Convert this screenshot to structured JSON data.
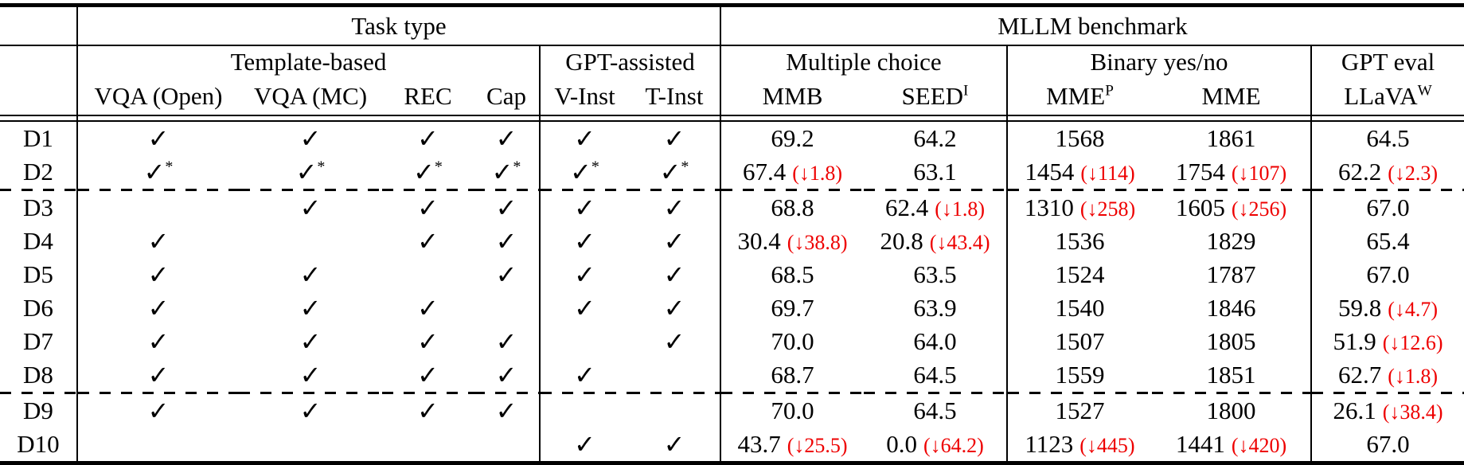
{
  "title_row": {
    "task_type": "Task type",
    "mllm_benchmark": "MLLM benchmark"
  },
  "group_row": {
    "template_based": "Template-based",
    "gpt_assisted": "GPT-assisted",
    "multiple_choice": "Multiple choice",
    "binary_yes_no": "Binary yes/no",
    "gpt_eval": "GPT eval"
  },
  "columns": [
    {
      "label": "VQA (Open)",
      "sup": ""
    },
    {
      "label": "VQA (MC)",
      "sup": ""
    },
    {
      "label": "REC",
      "sup": ""
    },
    {
      "label": "Cap",
      "sup": ""
    },
    {
      "label": "V-Inst",
      "sup": ""
    },
    {
      "label": "T-Inst",
      "sup": ""
    },
    {
      "label": "MMB",
      "sup": ""
    },
    {
      "label": "SEED",
      "sup": "I"
    },
    {
      "label": "MME",
      "sup": "P"
    },
    {
      "label": "MME",
      "sup": ""
    },
    {
      "label": "LLaVA",
      "sup": "W"
    }
  ],
  "symbols": {
    "check": "✓",
    "star": "*",
    "down_arrow": "↓"
  },
  "colors": {
    "delta_red": "#ee0000",
    "text": "#000000"
  },
  "rows": [
    {
      "id": "D1",
      "tasks": [
        "check",
        "check",
        "check",
        "check",
        "check",
        "check"
      ],
      "metrics": [
        {
          "v": "69.2"
        },
        {
          "v": "64.2"
        },
        {
          "v": "1568"
        },
        {
          "v": "1861"
        },
        {
          "v": "64.5"
        }
      ]
    },
    {
      "id": "D2",
      "tasks": [
        "check-star",
        "check-star",
        "check-star",
        "check-star",
        "check-star",
        "check-star"
      ],
      "metrics": [
        {
          "v": "67.4",
          "d": "1.8"
        },
        {
          "v": "63.1"
        },
        {
          "v": "1454",
          "d": "114"
        },
        {
          "v": "1754",
          "d": "107"
        },
        {
          "v": "62.2",
          "d": "2.3"
        }
      ]
    },
    {
      "id": "D3",
      "tasks": [
        "",
        "check",
        "check",
        "check",
        "check",
        "check"
      ],
      "metrics": [
        {
          "v": "68.8"
        },
        {
          "v": "62.4",
          "d": "1.8"
        },
        {
          "v": "1310",
          "d": "258"
        },
        {
          "v": "1605",
          "d": "256"
        },
        {
          "v": "67.0"
        }
      ]
    },
    {
      "id": "D4",
      "tasks": [
        "check",
        "",
        "check",
        "check",
        "check",
        "check"
      ],
      "metrics": [
        {
          "v": "30.4",
          "d": "38.8"
        },
        {
          "v": "20.8",
          "d": "43.4"
        },
        {
          "v": "1536"
        },
        {
          "v": "1829"
        },
        {
          "v": "65.4"
        }
      ]
    },
    {
      "id": "D5",
      "tasks": [
        "check",
        "check",
        "",
        "check",
        "check",
        "check"
      ],
      "metrics": [
        {
          "v": "68.5"
        },
        {
          "v": "63.5"
        },
        {
          "v": "1524"
        },
        {
          "v": "1787"
        },
        {
          "v": "67.0"
        }
      ]
    },
    {
      "id": "D6",
      "tasks": [
        "check",
        "check",
        "check",
        "",
        "check",
        "check"
      ],
      "metrics": [
        {
          "v": "69.7"
        },
        {
          "v": "63.9"
        },
        {
          "v": "1540"
        },
        {
          "v": "1846"
        },
        {
          "v": "59.8",
          "d": "4.7"
        }
      ]
    },
    {
      "id": "D7",
      "tasks": [
        "check",
        "check",
        "check",
        "check",
        "",
        "check"
      ],
      "metrics": [
        {
          "v": "70.0"
        },
        {
          "v": "64.0"
        },
        {
          "v": "1507"
        },
        {
          "v": "1805"
        },
        {
          "v": "51.9",
          "d": "12.6"
        }
      ]
    },
    {
      "id": "D8",
      "tasks": [
        "check",
        "check",
        "check",
        "check",
        "check",
        ""
      ],
      "metrics": [
        {
          "v": "68.7"
        },
        {
          "v": "64.5"
        },
        {
          "v": "1559"
        },
        {
          "v": "1851"
        },
        {
          "v": "62.7",
          "d": "1.8"
        }
      ]
    },
    {
      "id": "D9",
      "tasks": [
        "check",
        "check",
        "check",
        "check",
        "",
        ""
      ],
      "metrics": [
        {
          "v": "70.0"
        },
        {
          "v": "64.5"
        },
        {
          "v": "1527"
        },
        {
          "v": "1800"
        },
        {
          "v": "26.1",
          "d": "38.4"
        }
      ]
    },
    {
      "id": "D10",
      "tasks": [
        "",
        "",
        "",
        "",
        "check",
        "check"
      ],
      "metrics": [
        {
          "v": "43.7",
          "d": "25.5"
        },
        {
          "v": "0.0",
          "d": "64.2"
        },
        {
          "v": "1123",
          "d": "445"
        },
        {
          "v": "1441",
          "d": "420"
        },
        {
          "v": "67.0"
        }
      ]
    }
  ],
  "dashed_after": [
    "D2",
    "D8"
  ]
}
